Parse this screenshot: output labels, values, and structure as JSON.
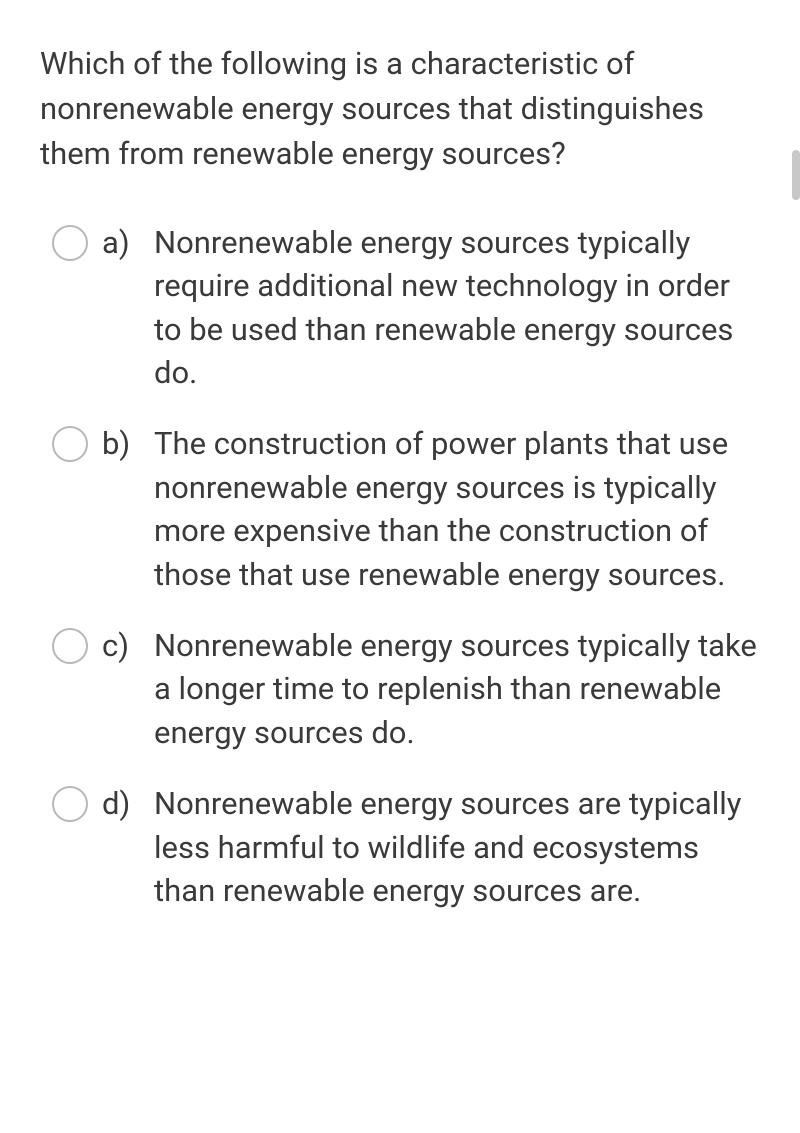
{
  "question": "Which of the following is a characteristic of nonrenewable energy sources that distinguishes them from renewable energy sources?",
  "options": [
    {
      "label": "a)",
      "text": "Nonrenewable energy sources typically require additional new technology in order to be used than renewable energy sources do."
    },
    {
      "label": "b)",
      "text": "The construction of power plants that use nonrenewable energy sources is typically more expensive than the construction of those that use renewable energy sources."
    },
    {
      "label": "c)",
      "text": "Nonrenewable energy sources typically take a longer time to replenish than renewable energy sources do."
    },
    {
      "label": "d)",
      "text": "Nonrenewable energy sources are typically less harmful to wildlife and ecosystems than renewable energy sources are."
    }
  ],
  "colors": {
    "text": "#3a3a3a",
    "radio_border": "#b8b8b8",
    "background": "#ffffff",
    "scrollbar": "#c8c8c8"
  },
  "typography": {
    "question_fontsize": 31,
    "option_fontsize": 31,
    "line_height": 1.4
  }
}
